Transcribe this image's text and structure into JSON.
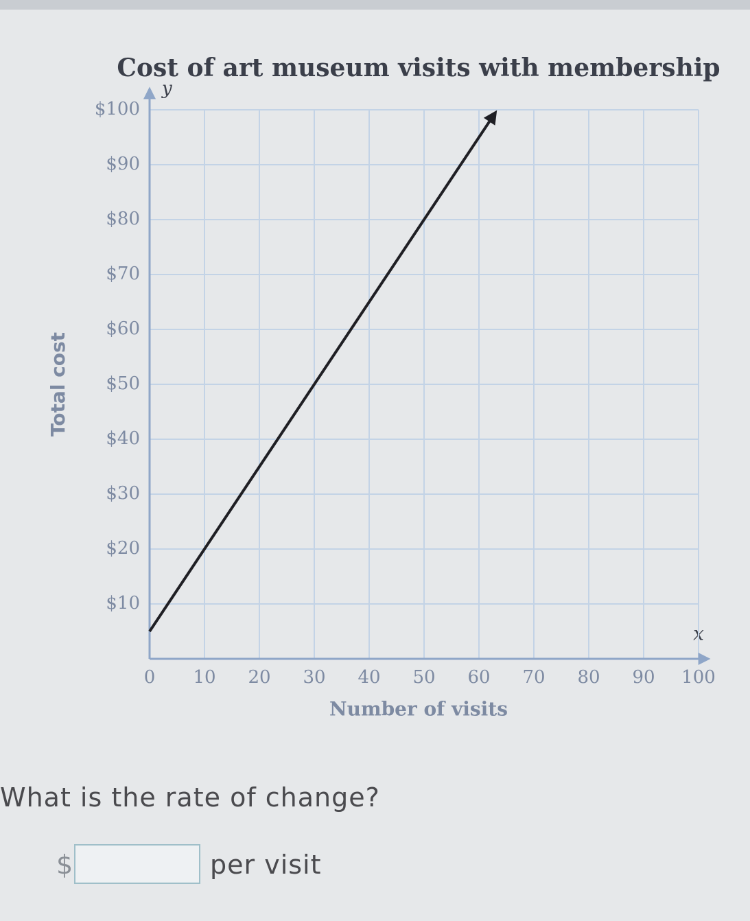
{
  "chart_data": {
    "type": "line",
    "title": "Cost of art museum visits with membership",
    "x_label": "Number of visits",
    "y_label": "Total cost",
    "x_axis_letter": "x",
    "y_axis_letter": "y",
    "x": [
      0,
      63
    ],
    "values": [
      5,
      99.5
    ],
    "color": "#1f1f24",
    "xlim": [
      0,
      100
    ],
    "ylim": [
      0,
      100
    ],
    "xticks": [
      0,
      10,
      20,
      30,
      40,
      50,
      60,
      70,
      80,
      90,
      100
    ],
    "yticks": [
      {
        "value": 10,
        "label": "$10"
      },
      {
        "value": 20,
        "label": "$20"
      },
      {
        "value": 30,
        "label": "$30"
      },
      {
        "value": 40,
        "label": "$40"
      },
      {
        "value": 50,
        "label": "$50"
      },
      {
        "value": 60,
        "label": "$60"
      },
      {
        "value": 70,
        "label": "$70"
      },
      {
        "value": 80,
        "label": "$80"
      },
      {
        "value": 90,
        "label": "$90"
      },
      {
        "value": 100,
        "label": "$100"
      }
    ],
    "grid": true
  },
  "question": {
    "text": "What is the rate of change?",
    "prefix": "$",
    "suffix": "per visit"
  }
}
